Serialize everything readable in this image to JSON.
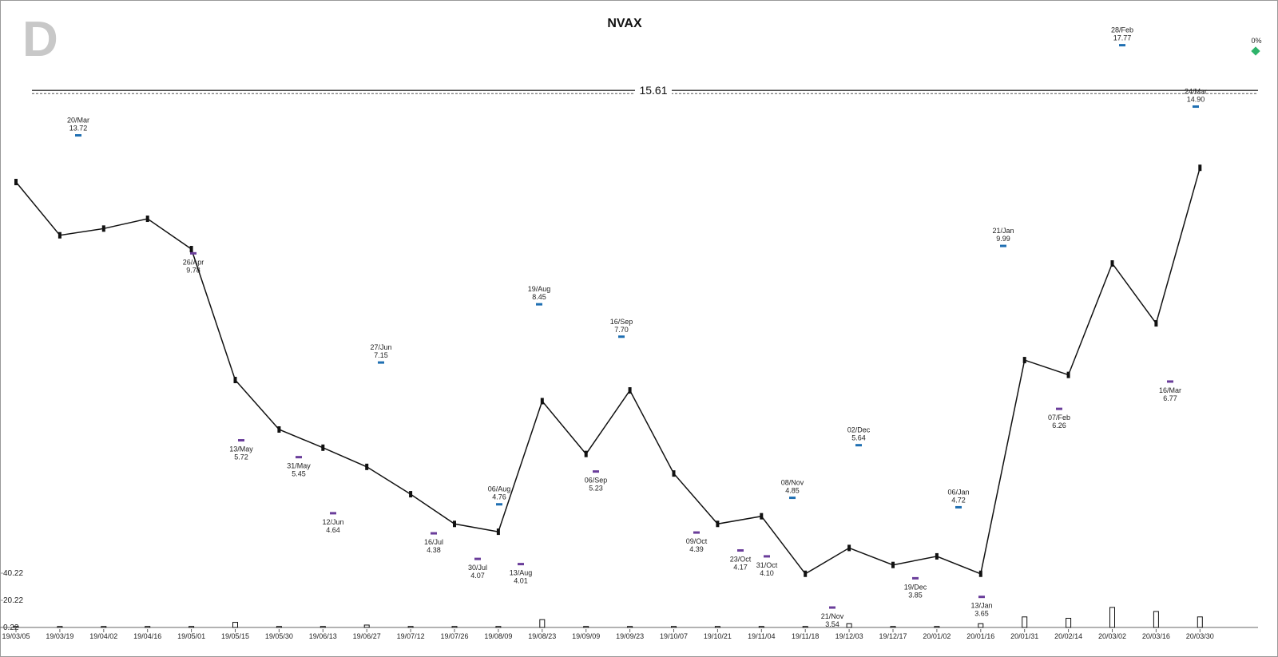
{
  "chart_data": {
    "type": "line",
    "title": "NVAX",
    "logo": "D",
    "change_label": "0%",
    "log_scale": true,
    "ylim": [
      3.5,
      20
    ],
    "reference_line": 15.61,
    "color": "#111111",
    "categories": [
      "19/03/05",
      "19/03/19",
      "19/04/02",
      "19/04/16",
      "19/05/01",
      "19/05/15",
      "19/05/30",
      "19/06/13",
      "19/06/27",
      "19/07/12",
      "19/07/26",
      "19/08/09",
      "19/08/23",
      "19/09/09",
      "19/09/23",
      "19/10/07",
      "19/10/21",
      "19/11/04",
      "19/11/18",
      "19/12/03",
      "19/12/17",
      "20/01/02",
      "20/01/16",
      "20/01/31",
      "20/02/14",
      "20/03/02",
      "20/03/16",
      "20/03/30"
    ],
    "values": [
      12,
      10.3,
      10.5,
      10.8,
      9.9,
      6.8,
      5.9,
      5.6,
      5.3,
      4.9,
      4.5,
      4.4,
      6.4,
      5.5,
      6.6,
      5.2,
      4.5,
      4.6,
      3.9,
      4.2,
      4.0,
      4.1,
      3.9,
      7.2,
      6.9,
      9.5,
      8.0,
      12.5
    ],
    "annotations": {
      "dates": [
        "20/Mar",
        "26/Apr",
        "13/May",
        "31/May",
        "12/Jun",
        "27/Jun",
        "16/Jul",
        "30/Jul",
        "06/Aug",
        "13/Aug",
        "19/Aug",
        "06/Sep",
        "16/Sep",
        "09/Oct",
        "23/Oct",
        "31/Oct",
        "08/Nov",
        "21/Nov",
        "02/Dec",
        "19/Dec",
        "06/Jan",
        "13/Jan",
        "21/Jan",
        "07/Feb",
        "28/Feb",
        "16/Mar",
        "24/Mar"
      ],
      "values": [
        13.72,
        9.78,
        5.72,
        5.45,
        4.64,
        7.15,
        4.38,
        4.07,
        4.76,
        4.01,
        8.45,
        5.23,
        7.7,
        4.39,
        4.17,
        4.1,
        4.85,
        3.54,
        5.64,
        3.85,
        4.72,
        3.65,
        9.99,
        6.26,
        17.77,
        6.77,
        14.9
      ],
      "value_labels": [
        "13.72",
        "9.78",
        "5.72",
        "5.45",
        "4.64",
        "7.15",
        "4.38",
        "4.07",
        "4.76",
        "4.01",
        "8.45",
        "5.23",
        "7.70",
        "4.39",
        "4.17",
        "4.10",
        "4.85",
        "3.54",
        "5.64",
        "3.85",
        "4.72",
        "3.65",
        "9.99",
        "6.26",
        "17.77",
        "6.77",
        "14.90"
      ],
      "colors": [
        "#1f6fb2",
        "#6a3d9a",
        "#6a3d9a",
        "#6a3d9a",
        "#6a3d9a",
        "#1f6fb2",
        "#6a3d9a",
        "#6a3d9a",
        "#1f6fb2",
        "#6a3d9a",
        "#1f6fb2",
        "#6a3d9a",
        "#1f6fb2",
        "#6a3d9a",
        "#6a3d9a",
        "#6a3d9a",
        "#1f6fb2",
        "#6a3d9a",
        "#1f6fb2",
        "#6a3d9a",
        "#1f6fb2",
        "#6a3d9a",
        "#1f6fb2",
        "#6a3d9a",
        "#1f6fb2",
        "#6a3d9a",
        "#1f6fb2"
      ]
    },
    "volume": {
      "values": [
        1,
        1,
        1,
        1,
        1,
        4,
        1,
        1,
        2,
        1,
        1,
        1,
        6,
        1,
        1,
        1,
        1,
        1,
        1,
        3,
        1,
        1,
        3,
        8,
        7,
        15,
        12,
        8
      ],
      "ylim": [
        0.22,
        40.22
      ],
      "yticks": [
        0.22,
        20.22,
        40.22
      ],
      "color": "#111111"
    }
  }
}
